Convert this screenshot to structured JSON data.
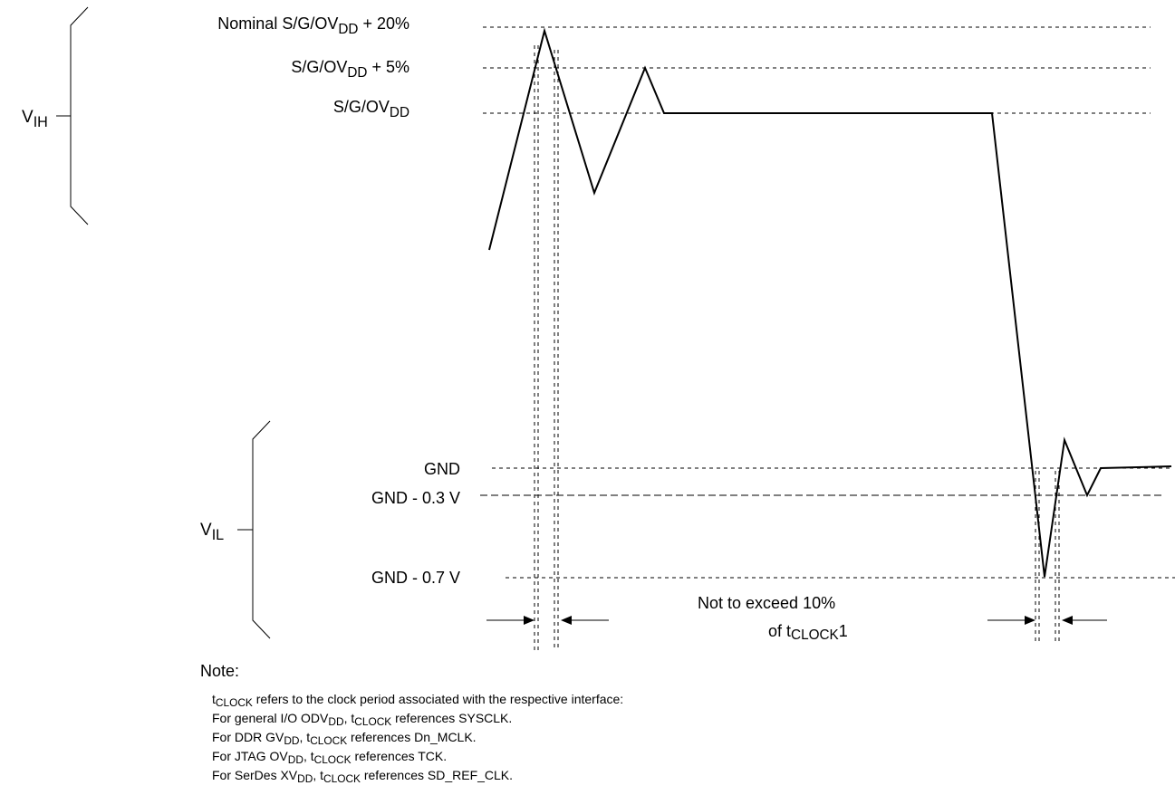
{
  "levels": {
    "nominal_plus20": {
      "main": "Nominal S/G/OV",
      "sub": "DD",
      "tail": " + 20%"
    },
    "plus5": {
      "main": "S/G/OV",
      "sub": "DD",
      "tail": " + 5%"
    },
    "supply": {
      "main": "S/G/OV",
      "sub": "DD",
      "tail": ""
    },
    "gnd": "GND",
    "gnd_minus_03": "GND - 0.3 V",
    "gnd_minus_07": "GND - 0.7 V"
  },
  "ranges": {
    "vih": {
      "main": "V",
      "sub": "IH"
    },
    "vil": {
      "main": "V",
      "sub": "IL"
    }
  },
  "annotation": {
    "line1": "Not to exceed 10%",
    "line2_pre": "of t",
    "line2_sub": "CLOCK",
    "line2_post": "1"
  },
  "note": {
    "title": "Note:",
    "lines": [
      {
        "a": "t",
        "a_sub": "CLOCK",
        "b": " refers to the clock period associated with the respective interface:"
      },
      {
        "a": "For general I/O ODV",
        "a_sub": "DD",
        "b": ", t",
        "b_sub": "CLOCK",
        "c": " references SYSCLK."
      },
      {
        "a": "For DDR GV",
        "a_sub": "DD",
        "b": ", t",
        "b_sub": "CLOCK",
        "c": " references Dn_MCLK."
      },
      {
        "a": "For JTAG OV",
        "a_sub": "DD",
        "b": ", t",
        "b_sub": "CLOCK",
        "c": " references TCK."
      },
      {
        "a": "For SerDes XV",
        "a_sub": "DD",
        "b": ", t",
        "b_sub": "CLOCK",
        "c": " references SD_REF_CLK."
      }
    ]
  }
}
